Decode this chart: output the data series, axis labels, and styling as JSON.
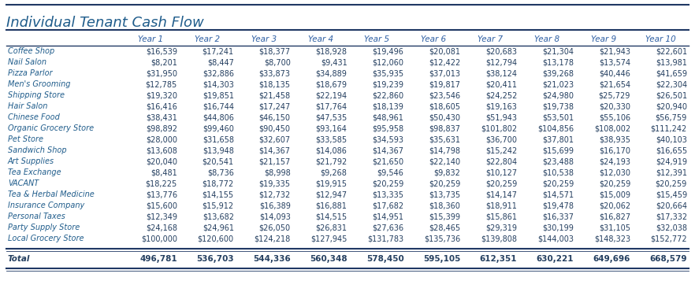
{
  "title": "Individual Tenant Cash Flow",
  "columns": [
    "",
    "Year 1",
    "Year 2",
    "Year 3",
    "Year 4",
    "Year 5",
    "Year 6",
    "Year 7",
    "Year 8",
    "Year 9",
    "Year 10"
  ],
  "rows": [
    [
      "Coffee Shop",
      "$16,539",
      "$17,241",
      "$18,377",
      "$18,928",
      "$19,496",
      "$20,081",
      "$20,683",
      "$21,304",
      "$21,943",
      "$22,601"
    ],
    [
      "Nail Salon",
      "$8,201",
      "$8,447",
      "$8,700",
      "$9,431",
      "$12,060",
      "$12,422",
      "$12,794",
      "$13,178",
      "$13,574",
      "$13,981"
    ],
    [
      "Pizza Parlor",
      "$31,950",
      "$32,886",
      "$33,873",
      "$34,889",
      "$35,935",
      "$37,013",
      "$38,124",
      "$39,268",
      "$40,446",
      "$41,659"
    ],
    [
      "Men's Grooming",
      "$12,785",
      "$14,303",
      "$18,135",
      "$18,679",
      "$19,239",
      "$19,817",
      "$20,411",
      "$21,023",
      "$21,654",
      "$22,304"
    ],
    [
      "Shipping Store",
      "$19,320",
      "$19,851",
      "$21,458",
      "$22,194",
      "$22,860",
      "$23,546",
      "$24,252",
      "$24,980",
      "$25,729",
      "$26,501"
    ],
    [
      "Hair Salon",
      "$16,416",
      "$16,744",
      "$17,247",
      "$17,764",
      "$18,139",
      "$18,605",
      "$19,163",
      "$19,738",
      "$20,330",
      "$20,940"
    ],
    [
      "Chinese Food",
      "$38,431",
      "$44,806",
      "$46,150",
      "$47,535",
      "$48,961",
      "$50,430",
      "$51,943",
      "$53,501",
      "$55,106",
      "$56,759"
    ],
    [
      "Organic Grocery Store",
      "$98,892",
      "$99,460",
      "$90,450",
      "$93,164",
      "$95,958",
      "$98,837",
      "$101,802",
      "$104,856",
      "$108,002",
      "$111,242"
    ],
    [
      "Pet Store",
      "$28,000",
      "$31,658",
      "$32,607",
      "$33,585",
      "$34,593",
      "$35,631",
      "$36,700",
      "$37,801",
      "$38,935",
      "$40,103"
    ],
    [
      "Sandwich Shop",
      "$13,608",
      "$13,948",
      "$14,367",
      "$14,086",
      "$14,367",
      "$14,798",
      "$15,242",
      "$15,699",
      "$16,170",
      "$16,655"
    ],
    [
      "Art Supplies",
      "$20,040",
      "$20,541",
      "$21,157",
      "$21,792",
      "$21,650",
      "$22,140",
      "$22,804",
      "$23,488",
      "$24,193",
      "$24,919"
    ],
    [
      "Tea Exchange",
      "$8,481",
      "$8,736",
      "$8,998",
      "$9,268",
      "$9,546",
      "$9,832",
      "$10,127",
      "$10,538",
      "$12,030",
      "$12,391"
    ],
    [
      "VACANT",
      "$18,225",
      "$18,772",
      "$19,335",
      "$19,915",
      "$20,259",
      "$20,259",
      "$20,259",
      "$20,259",
      "$20,259",
      "$20,259"
    ],
    [
      "Tea & Herbal Medicine",
      "$13,776",
      "$14,155",
      "$12,732",
      "$12,947",
      "$13,335",
      "$13,735",
      "$14,147",
      "$14,571",
      "$15,009",
      "$15,459"
    ],
    [
      "Insurance Company",
      "$15,600",
      "$15,912",
      "$16,389",
      "$16,881",
      "$17,682",
      "$18,360",
      "$18,911",
      "$19,478",
      "$20,062",
      "$20,664"
    ],
    [
      "Personal Taxes",
      "$12,349",
      "$13,682",
      "$14,093",
      "$14,515",
      "$14,951",
      "$15,399",
      "$15,861",
      "$16,337",
      "$16,827",
      "$17,332"
    ],
    [
      "Party Supply Store",
      "$24,168",
      "$24,961",
      "$26,050",
      "$26,831",
      "$27,636",
      "$28,465",
      "$29,319",
      "$30,199",
      "$31,105",
      "$32,038"
    ],
    [
      "Local Grocery Store",
      "$100,000",
      "$120,600",
      "$124,218",
      "$127,945",
      "$131,783",
      "$135,736",
      "$139,808",
      "$144,003",
      "$148,323",
      "$152,772"
    ]
  ],
  "totals": [
    "Total",
    "496,781",
    "536,703",
    "544,336",
    "560,348",
    "578,450",
    "595,105",
    "612,351",
    "630,221",
    "649,696",
    "668,579"
  ],
  "bg_color": "#ffffff",
  "title_color": "#1F5C8B",
  "header_color": "#2E5FA3",
  "row_label_color": "#1F5C8B",
  "data_color": "#243F60",
  "total_label_color": "#243F60",
  "total_data_color": "#243F60",
  "border_color": "#1F3864",
  "title_fontsize": 13,
  "header_fontsize": 7.5,
  "data_fontsize": 7.0,
  "total_fontsize": 7.5
}
